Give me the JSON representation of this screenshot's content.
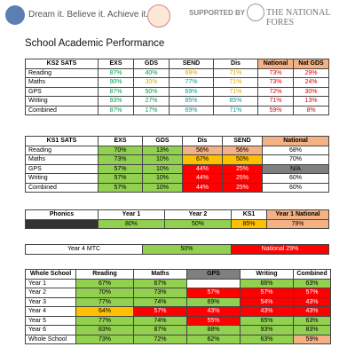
{
  "header": {
    "logo_text": "Dream it. Believe it. Achieve it.",
    "supported_by": "SUPPORTED BY",
    "sponsor": "THE NATIONAL FORES"
  },
  "title": "School Academic Performance",
  "ks2": {
    "rows": [
      [
        "KS2 SATS",
        "EXS",
        "GDS",
        "SEND",
        "Dis",
        "National",
        "Nat GDS"
      ],
      [
        "Reading",
        "87%",
        "40%",
        "69%",
        "71%",
        "73%",
        "29%"
      ],
      [
        "Maths",
        "90%",
        "30%",
        "77%",
        "71%",
        "73%",
        "24%"
      ],
      [
        "GPS",
        "87%",
        "50%",
        "69%",
        "71%",
        "72%",
        "30%"
      ],
      [
        "Writing",
        "93%",
        "27%",
        "85%",
        "85%",
        "71%",
        "13%"
      ],
      [
        "Combined",
        "87%",
        "17%",
        "69%",
        "71%",
        "59%",
        "8%"
      ]
    ]
  },
  "ks1": {
    "rows": [
      [
        "KS1 SATS",
        "EXS",
        "GDS",
        "Dis",
        "SEND",
        "National"
      ],
      [
        "Reading",
        "70%",
        "13%",
        "56%",
        "56%",
        "68%"
      ],
      [
        "Maths",
        "73%",
        "10%",
        "67%",
        "50%",
        "70%"
      ],
      [
        "GPS",
        "57%",
        "10%",
        "44%",
        "25%",
        "N/A"
      ],
      [
        "Writing",
        "57%",
        "10%",
        "44%",
        "25%",
        "60%"
      ],
      [
        "Combined",
        "57%",
        "10%",
        "44%",
        "25%",
        "60%"
      ]
    ]
  },
  "phonics": {
    "rows": [
      [
        "Phonics",
        "Year 1",
        "Year 2",
        "KS1",
        "Year 1 National"
      ],
      [
        null,
        "80%",
        "50%",
        "85%",
        "79%"
      ]
    ]
  },
  "mtc": {
    "rows": [
      [
        "Year 4 MTC",
        "50%",
        "National 29%"
      ]
    ]
  },
  "whole_school": {
    "rows": [
      [
        "Whole School",
        "Reading",
        "Maths",
        "GPS",
        "Writing",
        "Combined"
      ],
      [
        "Year 1",
        "67%",
        "67%",
        null,
        "66%",
        "63%"
      ],
      [
        "Year 2",
        "70%",
        "73%",
        "57%",
        "57%",
        "57%"
      ],
      [
        "Year 3",
        "77%",
        "74%",
        "69%",
        "54%",
        "43%"
      ],
      [
        "Year 4",
        "64%",
        "57%",
        "43%",
        "43%",
        "43%"
      ],
      [
        "Year 5",
        "77%",
        "74%",
        "55%",
        "65%",
        "63%"
      ],
      [
        "Year 6",
        "83%",
        "87%",
        "88%",
        "93%",
        "83%"
      ],
      [
        "Whole School",
        "73%",
        "72%",
        "62%",
        "63%",
        "59%"
      ]
    ]
  }
}
